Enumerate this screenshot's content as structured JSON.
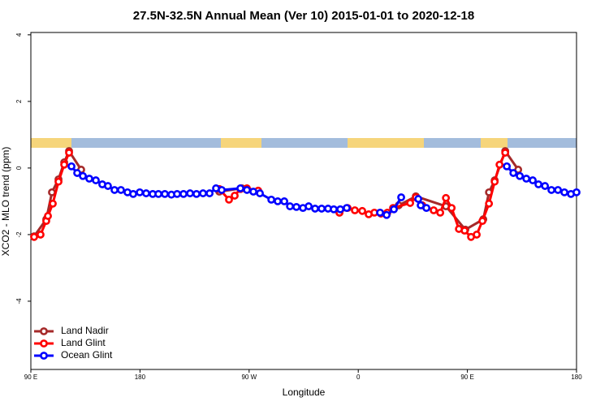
{
  "chart_data": {
    "type": "line",
    "title": "27.5N-32.5N Annual Mean (Ver 10)   2015-01-01 to 2020-12-18",
    "x_label": "Longitude",
    "y_label": "XCO2 - MLO trend (ppm)",
    "xlim": [
      90,
      540
    ],
    "ylim": [
      -6.05,
      4.07
    ],
    "xticks": [
      {
        "value": 90,
        "label": "90 E"
      },
      {
        "value": 180,
        "label": "180"
      },
      {
        "value": 270,
        "label": "90 W"
      },
      {
        "value": 360,
        "label": "0"
      },
      {
        "value": 450,
        "label": "90 E"
      },
      {
        "value": 540,
        "label": "180"
      }
    ],
    "yticks": [
      -4,
      -2,
      0,
      2,
      4
    ],
    "legend": "bottom-left",
    "series": [
      {
        "name": "Land Nadir",
        "color": "#a52a2a",
        "x": [
          92.7,
          102.7,
          107.4,
          112.8,
          117.5,
          121.5,
          131.5,
          null,
          245.4,
          264.1,
          null,
          344.5,
          null,
          393.4,
          407.5,
          432.3,
          448.3,
          463.1,
          467.8,
          472.5,
          481.2,
          491.9
        ],
        "values": [
          -2.05,
          -1.54,
          -0.73,
          -0.34,
          0.17,
          0.51,
          -0.05,
          null,
          -0.71,
          -0.61,
          null,
          -1.34,
          null,
          -1.12,
          -0.85,
          -1.15,
          -1.85,
          -1.54,
          -0.73,
          -0.37,
          0.51,
          -0.05
        ]
      },
      {
        "name": "Land Glint",
        "color": "#ff0000",
        "x": [
          92.7,
          98.0,
          102.7,
          104.1,
          108.1,
          112.8,
          117.5,
          121.5,
          null,
          245.4,
          253.4,
          258.1,
          262.8,
          268.2,
          277.5,
          null,
          344.5,
          351.2,
          357.2,
          363.3,
          368.6,
          373.3,
          378.7,
          384.0,
          388.7,
          402.8,
          407.5,
          412.8,
          422.2,
          427.6,
          432.3,
          437.0,
          443.0,
          447.7,
          453.0,
          457.7,
          462.4,
          467.8,
          472.5,
          476.5,
          481.2
        ],
        "values": [
          -2.07,
          -2.0,
          -1.59,
          -1.44,
          -1.07,
          -0.41,
          0.1,
          0.46,
          null,
          -0.63,
          -0.95,
          -0.83,
          -0.63,
          -0.61,
          -0.68,
          null,
          -1.34,
          -1.2,
          -1.27,
          -1.29,
          -1.39,
          -1.34,
          -1.37,
          -1.34,
          -1.2,
          -1.05,
          -0.88,
          -1.12,
          -1.27,
          -1.34,
          -0.9,
          -1.2,
          -1.83,
          -1.88,
          -2.07,
          -2.0,
          -1.59,
          -1.07,
          -0.41,
          0.1,
          0.46
        ]
      },
      {
        "name": "Ocean Glint",
        "color": "#0000ff",
        "x": [
          123.5,
          128.2,
          132.9,
          138.2,
          143.6,
          148.9,
          153.6,
          159.0,
          164.3,
          169.7,
          174.4,
          179.8,
          185.1,
          190.5,
          195.2,
          200.5,
          205.9,
          210.6,
          215.9,
          221.3,
          226.6,
          232.0,
          237.4,
          242.7,
          247.4,
          262.8,
          268.2,
          273.5,
          278.9,
          288.3,
          293.6,
          299.0,
          303.7,
          309.0,
          314.4,
          319.1,
          324.4,
          329.8,
          335.1,
          339.8,
          345.2,
          350.5,
          null,
          378.0,
          383.4,
          389.4,
          395.4,
          null,
          409.5,
          411.5,
          416.2,
          null,
          482.5,
          487.9,
          493.2,
          498.6,
          503.9,
          508.6,
          514.0,
          519.3,
          524.7,
          530.0,
          535.4,
          540.0
        ],
        "values": [
          0.05,
          -0.15,
          -0.24,
          -0.32,
          -0.37,
          -0.49,
          -0.54,
          -0.66,
          -0.66,
          -0.73,
          -0.78,
          -0.73,
          -0.76,
          -0.78,
          -0.78,
          -0.78,
          -0.8,
          -0.78,
          -0.78,
          -0.76,
          -0.78,
          -0.76,
          -0.76,
          -0.61,
          -0.66,
          -0.61,
          -0.66,
          -0.71,
          -0.76,
          -0.95,
          -1.0,
          -1.0,
          -1.15,
          -1.17,
          -1.2,
          -1.15,
          -1.22,
          -1.22,
          -1.22,
          -1.24,
          -1.24,
          -1.2,
          null,
          -1.34,
          -1.41,
          -1.24,
          -0.88,
          null,
          -0.93,
          -1.12,
          -1.2,
          null,
          0.05,
          -0.15,
          -0.24,
          -0.32,
          -0.37,
          -0.49,
          -0.54,
          -0.66,
          -0.66,
          -0.73,
          -0.78,
          -0.73
        ]
      }
    ]
  }
}
